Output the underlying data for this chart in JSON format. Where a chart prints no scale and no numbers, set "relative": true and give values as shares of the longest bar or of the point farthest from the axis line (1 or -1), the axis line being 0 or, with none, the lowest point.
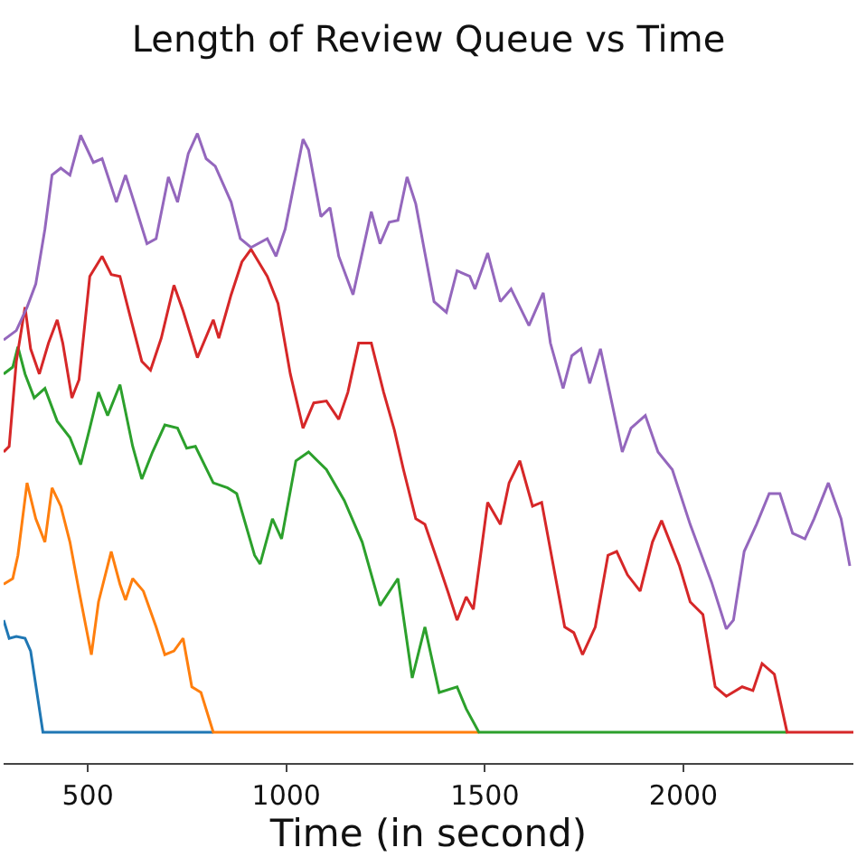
{
  "chart_data": {
    "type": "line",
    "title": "Length of Review Queue vs Time",
    "xlabel": "Time (in second)",
    "relative": true,
    "xlim": [
      288,
      2428
    ],
    "xticks": [
      500,
      1000,
      1500,
      2000
    ],
    "series": [
      {
        "color": "#1f77b4",
        "x": [
          288,
          302,
          320,
          342,
          356,
          387,
          816
        ],
        "values": [
          0.227,
          0.198,
          0.201,
          0.198,
          0.178,
          0.049,
          0.049
        ]
      },
      {
        "color": "#ff7f0e",
        "x": [
          288,
          311,
          324,
          347,
          369,
          392,
          410,
          432,
          455,
          478,
          509,
          527,
          559,
          581,
          595,
          613,
          640,
          672,
          694,
          717,
          740,
          762,
          785,
          816,
          1485
        ],
        "values": [
          0.284,
          0.293,
          0.33,
          0.445,
          0.388,
          0.351,
          0.437,
          0.408,
          0.351,
          0.273,
          0.172,
          0.256,
          0.336,
          0.284,
          0.259,
          0.293,
          0.273,
          0.216,
          0.172,
          0.178,
          0.198,
          0.121,
          0.112,
          0.049,
          0.049
        ]
      },
      {
        "color": "#2ca02c",
        "x": [
          288,
          311,
          324,
          342,
          365,
          392,
          423,
          455,
          482,
          505,
          527,
          550,
          581,
          613,
          636,
          663,
          694,
          726,
          749,
          771,
          816,
          852,
          875,
          920,
          934,
          965,
          988,
          1024,
          1056,
          1101,
          1146,
          1191,
          1236,
          1281,
          1317,
          1349,
          1385,
          1430,
          1453,
          1485,
          2261
        ],
        "values": [
          0.618,
          0.629,
          0.661,
          0.618,
          0.58,
          0.595,
          0.543,
          0.517,
          0.474,
          0.532,
          0.589,
          0.552,
          0.601,
          0.503,
          0.451,
          0.494,
          0.537,
          0.532,
          0.5,
          0.503,
          0.445,
          0.437,
          0.428,
          0.33,
          0.316,
          0.388,
          0.356,
          0.48,
          0.494,
          0.466,
          0.417,
          0.351,
          0.25,
          0.293,
          0.135,
          0.216,
          0.112,
          0.121,
          0.086,
          0.049,
          0.049
        ]
      },
      {
        "color": "#d62728",
        "x": [
          288,
          302,
          320,
          342,
          356,
          378,
          401,
          423,
          437,
          460,
          478,
          505,
          536,
          559,
          581,
          604,
          636,
          658,
          685,
          717,
          740,
          776,
          816,
          830,
          861,
          888,
          911,
          952,
          979,
          1010,
          1042,
          1069,
          1101,
          1132,
          1155,
          1182,
          1214,
          1245,
          1272,
          1295,
          1326,
          1349,
          1385,
          1408,
          1430,
          1453,
          1471,
          1507,
          1539,
          1561,
          1588,
          1620,
          1643,
          1701,
          1724,
          1746,
          1778,
          1810,
          1832,
          1859,
          1891,
          1922,
          1945,
          1990,
          2017,
          2049,
          2080,
          2108,
          2148,
          2175,
          2198,
          2229,
          2261,
          2428
        ],
        "values": [
          0.494,
          0.503,
          0.638,
          0.724,
          0.658,
          0.618,
          0.667,
          0.704,
          0.667,
          0.58,
          0.609,
          0.773,
          0.805,
          0.776,
          0.773,
          0.716,
          0.638,
          0.624,
          0.675,
          0.759,
          0.718,
          0.644,
          0.704,
          0.675,
          0.744,
          0.796,
          0.816,
          0.773,
          0.73,
          0.618,
          0.532,
          0.572,
          0.575,
          0.546,
          0.589,
          0.667,
          0.667,
          0.589,
          0.529,
          0.466,
          0.388,
          0.379,
          0.313,
          0.27,
          0.227,
          0.264,
          0.244,
          0.414,
          0.379,
          0.445,
          0.48,
          0.408,
          0.414,
          0.216,
          0.207,
          0.172,
          0.216,
          0.33,
          0.336,
          0.299,
          0.273,
          0.351,
          0.385,
          0.313,
          0.256,
          0.236,
          0.121,
          0.106,
          0.121,
          0.115,
          0.158,
          0.141,
          0.049,
          0.049
        ]
      },
      {
        "color": "#9467bd",
        "x": [
          288,
          320,
          347,
          369,
          392,
          410,
          432,
          455,
          482,
          514,
          536,
          572,
          595,
          618,
          649,
          672,
          703,
          726,
          753,
          776,
          798,
          821,
          861,
          884,
          911,
          952,
          974,
          997,
          1042,
          1056,
          1087,
          1110,
          1132,
          1168,
          1214,
          1236,
          1259,
          1281,
          1304,
          1326,
          1349,
          1372,
          1403,
          1430,
          1462,
          1475,
          1507,
          1539,
          1566,
          1611,
          1647,
          1665,
          1697,
          1719,
          1742,
          1764,
          1791,
          1846,
          1868,
          1904,
          1936,
          1972,
          2017,
          2071,
          2108,
          2126,
          2153,
          2184,
          2216,
          2243,
          2275,
          2306,
          2329,
          2365,
          2397,
          2419
        ],
        "values": [
          0.672,
          0.687,
          0.724,
          0.761,
          0.848,
          0.934,
          0.945,
          0.934,
          0.997,
          0.954,
          0.96,
          0.891,
          0.934,
          0.888,
          0.825,
          0.833,
          0.931,
          0.891,
          0.968,
          1,
          0.96,
          0.948,
          0.891,
          0.833,
          0.819,
          0.833,
          0.805,
          0.848,
          0.991,
          0.974,
          0.868,
          0.882,
          0.805,
          0.744,
          0.876,
          0.825,
          0.859,
          0.862,
          0.931,
          0.888,
          0.81,
          0.733,
          0.716,
          0.782,
          0.773,
          0.753,
          0.81,
          0.733,
          0.753,
          0.695,
          0.747,
          0.667,
          0.595,
          0.647,
          0.658,
          0.603,
          0.658,
          0.494,
          0.532,
          0.552,
          0.494,
          0.466,
          0.379,
          0.287,
          0.213,
          0.227,
          0.336,
          0.379,
          0.428,
          0.428,
          0.365,
          0.356,
          0.388,
          0.445,
          0.388,
          0.313
        ]
      }
    ]
  }
}
